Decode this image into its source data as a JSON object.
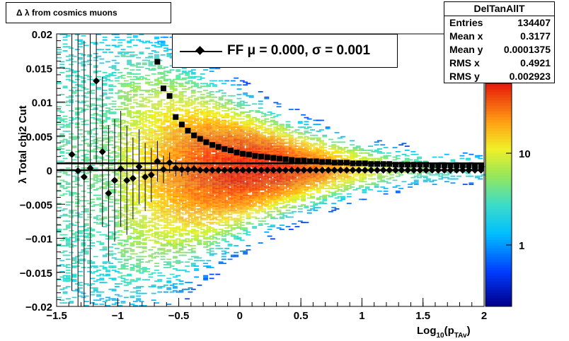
{
  "title_box": {
    "text": "Δ λ  from cosmics muons"
  },
  "stats": {
    "title": "DelTanAllT",
    "rows": [
      {
        "label": "Entries",
        "value": "134407"
      },
      {
        "label": "Mean x",
        "value": "0.3177"
      },
      {
        "label": "Mean y",
        "value": "0.0001375"
      },
      {
        "label": "RMS x",
        "value": "0.4921"
      },
      {
        "label": "RMS y",
        "value": "0.002923"
      }
    ]
  },
  "legend": {
    "text": "FF μ =  0.000, σ =   0.001"
  },
  "chart_data": {
    "type": "heatmap",
    "xlabel": "Log10(pTAv)",
    "xlabel_main": "Log",
    "xlabel_sub1": "10",
    "xlabel_p": "(p",
    "xlabel_sub2": "TAv",
    "xlabel_close": ")",
    "ylabel": "λ  Total chi2 Cut",
    "xlim": [
      -1.5,
      2
    ],
    "ylim": [
      -0.02,
      0.02
    ],
    "x_ticks": [
      {
        "v": -1.5,
        "label": "−1.5"
      },
      {
        "v": -1,
        "label": "−1"
      },
      {
        "v": -0.5,
        "label": "−0.5"
      },
      {
        "v": 0,
        "label": "0"
      },
      {
        "v": 0.5,
        "label": "0.5"
      },
      {
        "v": 1,
        "label": "1"
      },
      {
        "v": 1.5,
        "label": "1.5"
      },
      {
        "v": 2,
        "label": "2"
      }
    ],
    "y_ticks": [
      {
        "v": 0.02,
        "label": "0.02"
      },
      {
        "v": 0.015,
        "label": "0.015"
      },
      {
        "v": 0.01,
        "label": "0.01"
      },
      {
        "v": 0.005,
        "label": "0.005"
      },
      {
        "v": 0,
        "label": "0"
      },
      {
        "v": -0.005,
        "label": "−0.005"
      },
      {
        "v": -0.01,
        "label": "−0.01"
      },
      {
        "v": -0.015,
        "label": "−0.015"
      },
      {
        "v": -0.02,
        "label": "−0.02"
      }
    ],
    "colorbar": {
      "scale": "log",
      "labels": [
        {
          "v": 10,
          "label": "10"
        },
        {
          "v": 1,
          "label": "1"
        }
      ]
    },
    "fit_lines": [
      0.001,
      0.0
    ],
    "series": [
      {
        "name": "FF",
        "marker": "diamond",
        "points": [
          {
            "x": -1.375,
            "y": 0.0023,
            "err": 0.02
          },
          {
            "x": -1.325,
            "y": -0.0001,
            "err": 0.02
          },
          {
            "x": -1.275,
            "y": -0.001,
            "err": 0.02
          },
          {
            "x": -1.225,
            "y": 0.0003,
            "err": 0.02
          },
          {
            "x": -1.175,
            "y": 0.0131,
            "err": 0.012
          },
          {
            "x": -1.125,
            "y": 0.0027,
            "err": 0.011
          },
          {
            "x": -1.075,
            "y": -0.0034,
            "err": 0.01
          },
          {
            "x": -1.025,
            "y": -0.0015,
            "err": 0.009
          },
          {
            "x": -0.975,
            "y": 0.0002,
            "err": 0.0085
          },
          {
            "x": -0.925,
            "y": -0.0015,
            "err": 0.008
          },
          {
            "x": -0.875,
            "y": -0.0012,
            "err": 0.006
          },
          {
            "x": -0.825,
            "y": 0.0005,
            "err": 0.0055
          },
          {
            "x": -0.775,
            "y": -0.001,
            "err": 0.005
          },
          {
            "x": -0.725,
            "y": -0.0007,
            "err": 0.004
          },
          {
            "x": -0.675,
            "y": 0.0013,
            "err": 0.003
          },
          {
            "x": -0.625,
            "y": 0.0001,
            "err": 0.002
          },
          {
            "x": -0.575,
            "y": 0.0011,
            "err": 0.0015
          },
          {
            "x": -0.525,
            "y": 0.0003,
            "err": 0.0012
          },
          {
            "x": -0.475,
            "y": 0.0001,
            "err": 0.001
          },
          {
            "x": -0.425,
            "y": 0.0001,
            "err": 0.0008
          },
          {
            "x": -0.375,
            "y": 0.0002,
            "err": 0.0006
          },
          {
            "x": -0.325,
            "y": 0.0,
            "err": 0
          },
          {
            "x": -0.275,
            "y": 0.0,
            "err": 0
          },
          {
            "x": -0.225,
            "y": 0.0,
            "err": 0
          },
          {
            "x": -0.175,
            "y": 0.0,
            "err": 0
          },
          {
            "x": -0.125,
            "y": 0.0,
            "err": 0
          },
          {
            "x": -0.075,
            "y": 0.0,
            "err": 0
          },
          {
            "x": -0.025,
            "y": 0.0,
            "err": 0
          },
          {
            "x": 0.025,
            "y": 0.0,
            "err": 0
          },
          {
            "x": 0.075,
            "y": 0.0,
            "err": 0
          },
          {
            "x": 0.125,
            "y": 0.0,
            "err": 0
          },
          {
            "x": 0.175,
            "y": 0.0,
            "err": 0
          },
          {
            "x": 0.225,
            "y": 0.0,
            "err": 0
          },
          {
            "x": 0.275,
            "y": 0.0,
            "err": 0
          },
          {
            "x": 0.325,
            "y": 0.0,
            "err": 0
          },
          {
            "x": 0.375,
            "y": 0.0,
            "err": 0
          },
          {
            "x": 0.425,
            "y": 0.0,
            "err": 0
          },
          {
            "x": 0.475,
            "y": 0.0,
            "err": 0
          },
          {
            "x": 0.525,
            "y": 0.0,
            "err": 0
          },
          {
            "x": 0.575,
            "y": 0.0,
            "err": 0
          },
          {
            "x": 0.625,
            "y": 0.0,
            "err": 0
          },
          {
            "x": 0.675,
            "y": 0.0,
            "err": 0
          },
          {
            "x": 0.725,
            "y": 0.0,
            "err": 0
          },
          {
            "x": 0.775,
            "y": 0.0,
            "err": 0
          },
          {
            "x": 0.825,
            "y": 0.0,
            "err": 0
          },
          {
            "x": 0.875,
            "y": 0.0,
            "err": 0
          },
          {
            "x": 0.925,
            "y": 0.0,
            "err": 0
          },
          {
            "x": 0.975,
            "y": 0.0,
            "err": 0
          },
          {
            "x": 1.025,
            "y": 0.0,
            "err": 0
          },
          {
            "x": 1.075,
            "y": 0.0,
            "err": 0
          },
          {
            "x": 1.125,
            "y": 0.0,
            "err": 0
          },
          {
            "x": 1.175,
            "y": 0.0,
            "err": 0
          },
          {
            "x": 1.225,
            "y": 0.0,
            "err": 0
          },
          {
            "x": 1.275,
            "y": 0.0,
            "err": 0
          },
          {
            "x": 1.325,
            "y": 0.0,
            "err": 0
          },
          {
            "x": 1.375,
            "y": 0.0,
            "err": 0
          },
          {
            "x": 1.425,
            "y": 0.0,
            "err": 0
          },
          {
            "x": 1.475,
            "y": 0.0,
            "err": 0
          },
          {
            "x": 1.525,
            "y": 0.0,
            "err": 0
          },
          {
            "x": 1.575,
            "y": 0.0,
            "err": 0
          },
          {
            "x": 1.625,
            "y": 0.0,
            "err": 0
          },
          {
            "x": 1.675,
            "y": 0.0,
            "err": 0
          },
          {
            "x": 1.725,
            "y": 0.0,
            "err": 0
          },
          {
            "x": 1.775,
            "y": 0.0,
            "err": 0
          },
          {
            "x": 1.825,
            "y": 0.0,
            "err": 0
          },
          {
            "x": 1.875,
            "y": 0.0,
            "err": 0
          },
          {
            "x": 1.925,
            "y": 0.0,
            "err": 0
          },
          {
            "x": 1.975,
            "y": 0.0,
            "err": 0
          }
        ]
      },
      {
        "name": "",
        "marker": "square",
        "points": [
          {
            "x": -0.675,
            "y": 0.0159
          },
          {
            "x": -0.625,
            "y": 0.012
          },
          {
            "x": -0.575,
            "y": 0.0109
          },
          {
            "x": -0.525,
            "y": 0.0078
          },
          {
            "x": -0.475,
            "y": 0.0067
          },
          {
            "x": -0.425,
            "y": 0.0058
          },
          {
            "x": -0.375,
            "y": 0.0051
          },
          {
            "x": -0.325,
            "y": 0.0046
          },
          {
            "x": -0.275,
            "y": 0.0041
          },
          {
            "x": -0.225,
            "y": 0.0037
          },
          {
            "x": -0.175,
            "y": 0.0034
          },
          {
            "x": -0.125,
            "y": 0.0031
          },
          {
            "x": -0.075,
            "y": 0.0029
          },
          {
            "x": -0.025,
            "y": 0.0026
          },
          {
            "x": 0.025,
            "y": 0.0024
          },
          {
            "x": 0.075,
            "y": 0.0023
          },
          {
            "x": 0.125,
            "y": 0.0021
          },
          {
            "x": 0.175,
            "y": 0.002
          },
          {
            "x": 0.225,
            "y": 0.0019
          },
          {
            "x": 0.275,
            "y": 0.0018
          },
          {
            "x": 0.325,
            "y": 0.0017
          },
          {
            "x": 0.375,
            "y": 0.0016
          },
          {
            "x": 0.425,
            "y": 0.0015
          },
          {
            "x": 0.475,
            "y": 0.0014
          },
          {
            "x": 0.525,
            "y": 0.0014
          },
          {
            "x": 0.575,
            "y": 0.0013
          },
          {
            "x": 0.625,
            "y": 0.0013
          },
          {
            "x": 0.675,
            "y": 0.0012
          },
          {
            "x": 0.725,
            "y": 0.0012
          },
          {
            "x": 0.775,
            "y": 0.0011
          },
          {
            "x": 0.825,
            "y": 0.0011
          },
          {
            "x": 0.875,
            "y": 0.0011
          },
          {
            "x": 0.925,
            "y": 0.001
          },
          {
            "x": 0.975,
            "y": 0.001
          },
          {
            "x": 1.025,
            "y": 0.001
          },
          {
            "x": 1.075,
            "y": 0.0009
          },
          {
            "x": 1.125,
            "y": 0.0009
          },
          {
            "x": 1.175,
            "y": 0.0009
          },
          {
            "x": 1.225,
            "y": 0.0009
          },
          {
            "x": 1.275,
            "y": 0.0008
          },
          {
            "x": 1.325,
            "y": 0.0008
          },
          {
            "x": 1.375,
            "y": 0.0008
          },
          {
            "x": 1.425,
            "y": 0.0008
          },
          {
            "x": 1.475,
            "y": 0.0008
          },
          {
            "x": 1.525,
            "y": 0.0008
          },
          {
            "x": 1.575,
            "y": 0.0007
          },
          {
            "x": 1.625,
            "y": 0.0007
          },
          {
            "x": 1.675,
            "y": 0.0007
          },
          {
            "x": 1.725,
            "y": 0.0007
          },
          {
            "x": 1.775,
            "y": 0.0007
          },
          {
            "x": 1.825,
            "y": 0.0007
          },
          {
            "x": 1.875,
            "y": 0.0007
          },
          {
            "x": 1.925,
            "y": 0.0006
          },
          {
            "x": 1.975,
            "y": 0.0006
          }
        ]
      }
    ]
  }
}
